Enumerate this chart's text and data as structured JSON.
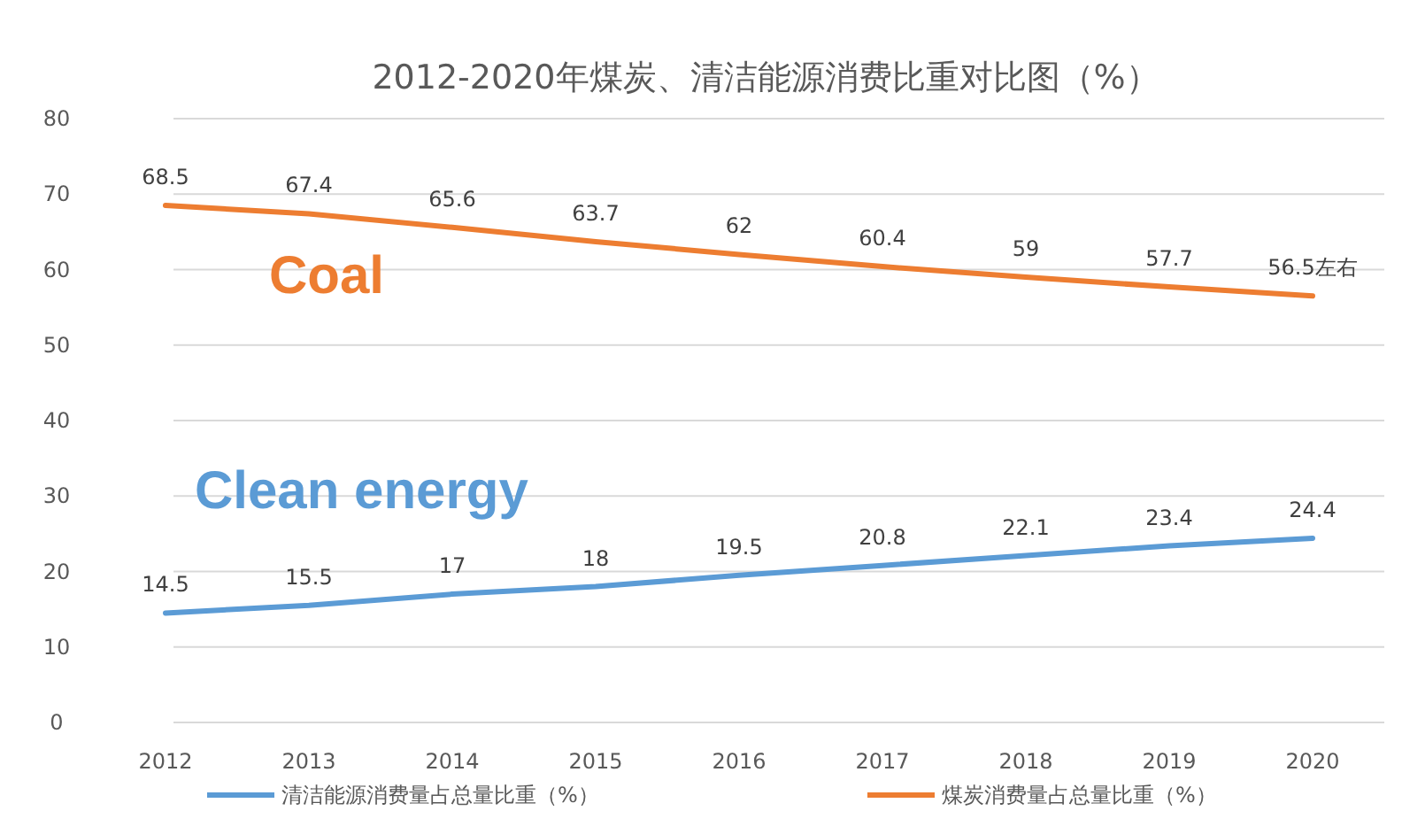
{
  "chart_data": {
    "type": "line",
    "title": "2012-2020年煤炭、清洁能源消费比重对比图（%）",
    "categories": [
      "2012",
      "2013",
      "2014",
      "2015",
      "2016",
      "2017",
      "2018",
      "2019",
      "2020"
    ],
    "series": [
      {
        "name": "清洁能源消费量占总量比重（%）",
        "color": "#5b9bd5",
        "values": [
          14.5,
          15.5,
          17,
          18,
          19.5,
          20.8,
          22.1,
          23.4,
          24.4
        ],
        "value_labels": [
          "14.5",
          "15.5",
          "17",
          "18",
          "19.5",
          "20.8",
          "22.1",
          "23.4",
          "24.4"
        ]
      },
      {
        "name": "煤炭消费量占总量比重（%）",
        "color": "#ed7d31",
        "values": [
          68.5,
          67.4,
          65.6,
          63.7,
          62,
          60.4,
          59,
          57.7,
          56.5
        ],
        "value_labels": [
          "68.5",
          "67.4",
          "65.6",
          "63.7",
          "62",
          "60.4",
          "59",
          "57.7",
          "56.5左右"
        ]
      }
    ],
    "annotations": [
      "Clean energy",
      "Coal"
    ],
    "ylim": [
      0,
      80
    ],
    "yticks": [
      0,
      10,
      20,
      30,
      40,
      50,
      60,
      70,
      80
    ],
    "grid": "y",
    "legend": "bottom",
    "marker": "none",
    "line_style": "solid"
  }
}
